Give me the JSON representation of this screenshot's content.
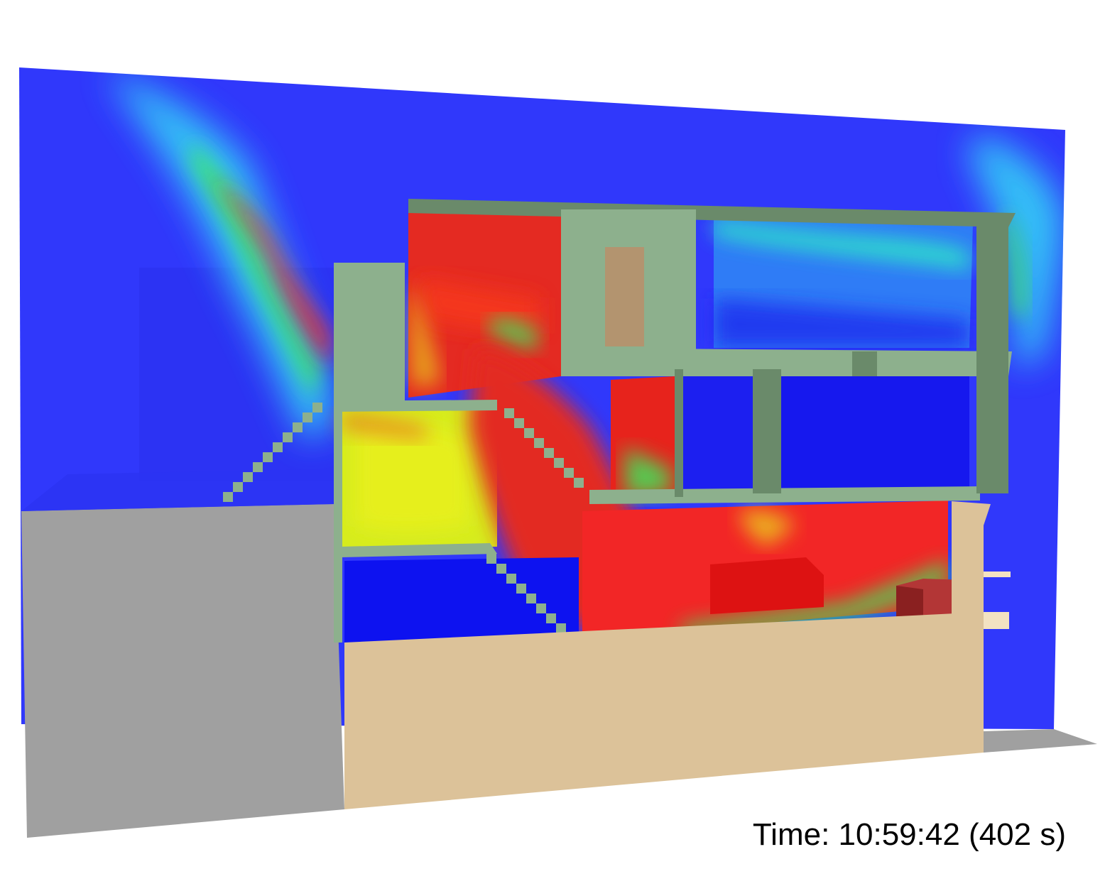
{
  "view": {
    "time_prefix": "Time:",
    "clock_time": "10:59:42",
    "elapsed": "(402 s)"
  },
  "colors": {
    "cold": "#2f37fb",
    "cyan": "#2ee8f4",
    "green": "#2ee85a",
    "yellow": "#d7f21c",
    "hot": "#ee2222",
    "wall": "#8db08d",
    "wall_dark": "#6a8a6a",
    "floor": "#dcc299",
    "ground": "#9e9e9e",
    "door": "#b3946f",
    "burner": "#b33636"
  }
}
